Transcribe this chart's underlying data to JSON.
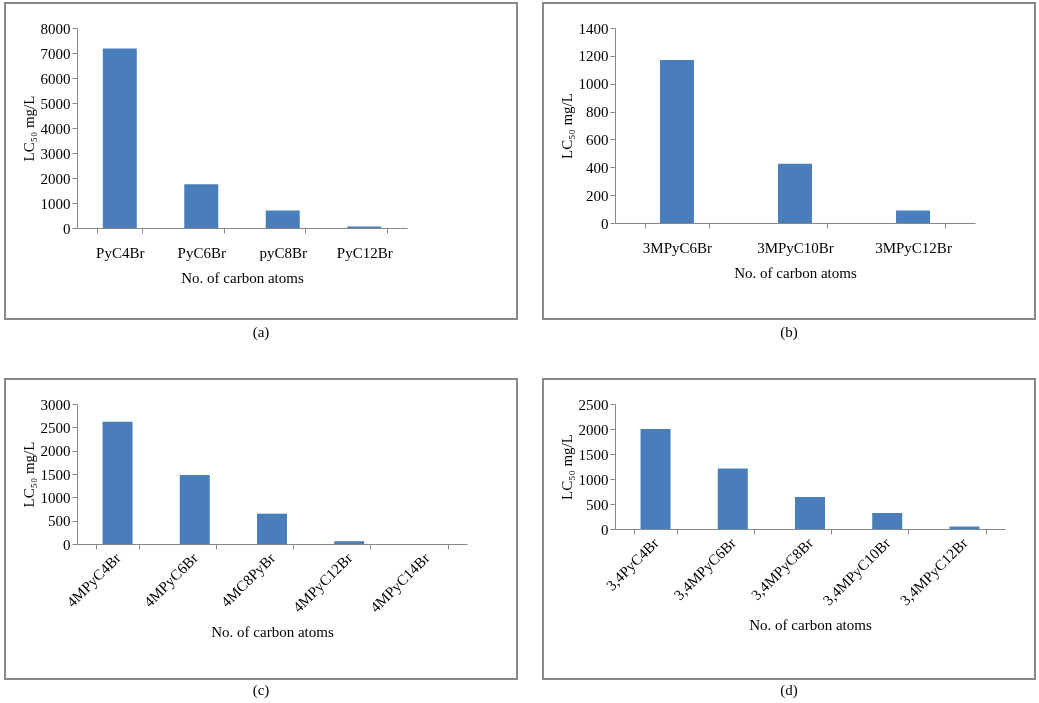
{
  "chart_data": [
    {
      "type": "bar",
      "categories": [
        "PyC4Br",
        "PyC6Br",
        "pyC8Br",
        "PyC12Br"
      ],
      "values": [
        7180,
        1750,
        700,
        60
      ],
      "color": "#4a7ebb",
      "ylim": [
        0,
        8000
      ],
      "yticks": [
        0,
        1000,
        2000,
        3000,
        4000,
        5000,
        6000,
        7000,
        8000
      ],
      "xlabel": "No. of carbon atoms",
      "ylabel": "LC₅₀ mg/L",
      "annotations": [
        "(a)"
      ],
      "grid": false
    },
    {
      "type": "bar",
      "categories": [
        "3MPyC6Br",
        "3MPyC10Br",
        "3MPyC12Br"
      ],
      "values": [
        1170,
        425,
        90
      ],
      "color": "#4a7ebb",
      "ylim": [
        0,
        1400
      ],
      "yticks": [
        0,
        200,
        400,
        600,
        800,
        1000,
        1200,
        1400
      ],
      "xlabel": "No. of carbon atoms",
      "ylabel": "LC₅₀ mg/L",
      "annotations": [
        "(b)"
      ],
      "grid": false
    },
    {
      "type": "bar",
      "categories": [
        "4MPyC4Br",
        "4MPyC6Br",
        "4MC8PyBr",
        "4MPyC12Br",
        "4MPyC14Br"
      ],
      "values": [
        2620,
        1480,
        650,
        60,
        0
      ],
      "color": "#4a7ebb",
      "ylim": [
        0,
        3000
      ],
      "yticks": [
        0,
        500,
        1000,
        1500,
        2000,
        2500,
        3000
      ],
      "xlabel": "No. of carbon atoms",
      "ylabel": "LC₅₀ mg/L",
      "annotations": [
        "(c)"
      ],
      "grid": false
    },
    {
      "type": "bar",
      "categories": [
        "3,4PyC4Br",
        "3,4MPyC6Br",
        "3,4MPyC8Br",
        "3,4MPyC10Br",
        "3,4MPyC12Br"
      ],
      "values": [
        2000,
        1210,
        640,
        320,
        50
      ],
      "color": "#4a7ebb",
      "ylim": [
        0,
        2500
      ],
      "yticks": [
        0,
        500,
        1000,
        1500,
        2000,
        2500
      ],
      "xlabel": "No. of carbon atoms",
      "ylabel": "LC₅₀ mg/L",
      "annotations": [
        "(d)"
      ],
      "grid": false
    }
  ]
}
